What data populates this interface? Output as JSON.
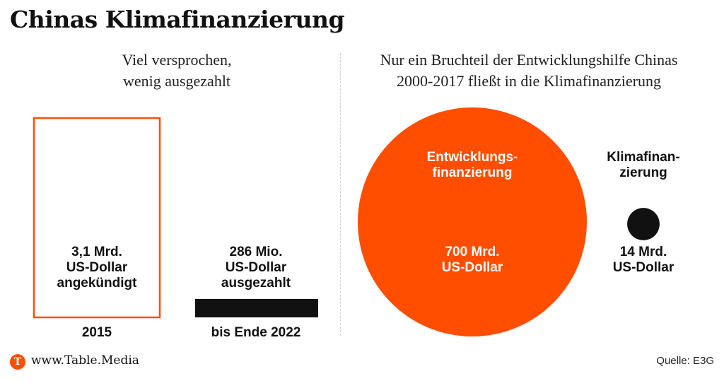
{
  "title": "Chinas Klimafinanzierung",
  "footer": {
    "logo_letter": "T",
    "brand": "www.Table.Media",
    "source": "Quelle: E3G"
  },
  "colors": {
    "accent": "#ff4e00",
    "dark": "#111111",
    "divider": "#d0d0d0"
  },
  "chart_data": [
    {
      "type": "bar",
      "title": "Viel versprochen,\nwenig ausgezahlt",
      "unit": "US-Dollar",
      "categories": [
        "2015",
        "bis Ende 2022"
      ],
      "values": [
        3100000000,
        286000000
      ],
      "styles": [
        "outline",
        "filled"
      ],
      "data_labels": [
        "3,1 Mrd.\nUS-Dollar\nangekündigt",
        "286 Mio.\nUS-Dollar\nausgezahlt"
      ],
      "ylim": [
        0,
        3100000000
      ]
    },
    {
      "type": "bubble",
      "title": "Nur ein Bruchteil der Entwicklungshilfe Chinas\n2000-2017 fließt in die Klimafinanzierung",
      "unit": "US-Dollar",
      "categories": [
        "Entwicklungs-\nfinanzierung",
        "Klimafinan-\nzierung"
      ],
      "values": [
        700000000000,
        14000000000
      ],
      "value_labels": [
        "700 Mrd.\nUS-Dollar",
        "14 Mrd.\nUS-Dollar"
      ]
    }
  ]
}
